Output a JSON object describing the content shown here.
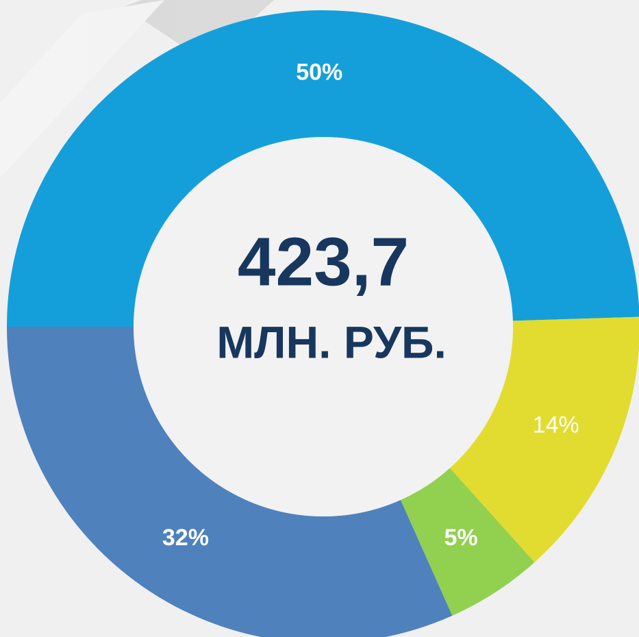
{
  "chart_data": {
    "type": "donut",
    "categories": [
      null,
      null,
      null,
      null
    ],
    "values": [
      50,
      14,
      5,
      32
    ],
    "value_labels": [
      "50%",
      "14%",
      "5%",
      "32%"
    ],
    "colors": [
      "#159fda",
      "#e2dc30",
      "#92d050",
      "#4f81bd"
    ],
    "annotations": [
      "423,7",
      "МЛН. РУБ."
    ]
  }
}
